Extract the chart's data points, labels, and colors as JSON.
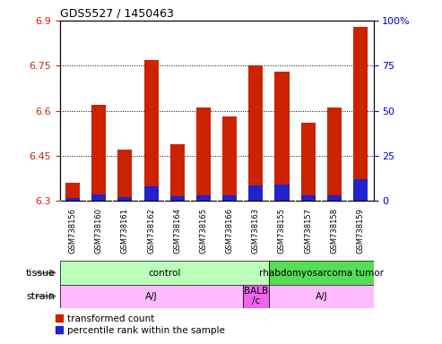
{
  "title": "GDS5527 / 1450463",
  "samples": [
    "GSM738156",
    "GSM738160",
    "GSM738161",
    "GSM738162",
    "GSM738164",
    "GSM738165",
    "GSM738166",
    "GSM738163",
    "GSM738155",
    "GSM738157",
    "GSM738158",
    "GSM738159"
  ],
  "red_values": [
    6.36,
    6.62,
    6.47,
    6.77,
    6.49,
    6.61,
    6.58,
    6.75,
    6.73,
    6.56,
    6.61,
    6.88
  ],
  "blue_values": [
    1.5,
    3.5,
    2.0,
    8.0,
    2.5,
    3.0,
    3.0,
    8.5,
    9.0,
    3.0,
    3.0,
    12.0
  ],
  "ymin": 6.3,
  "ymax": 6.9,
  "y_ticks": [
    6.3,
    6.45,
    6.6,
    6.75,
    6.9
  ],
  "y2_ticks": [
    0,
    25,
    50,
    75,
    100
  ],
  "tissue_labels": [
    {
      "text": "control",
      "start": 0,
      "end": 8,
      "color": "#bbffbb"
    },
    {
      "text": "rhabdomyosarcoma tumor",
      "start": 8,
      "end": 12,
      "color": "#55dd55"
    }
  ],
  "strain_labels": [
    {
      "text": "A/J",
      "start": 0,
      "end": 7,
      "color": "#ffbbff"
    },
    {
      "text": "BALB\n/c",
      "start": 7,
      "end": 8,
      "color": "#ee66ee"
    },
    {
      "text": "A/J",
      "start": 8,
      "end": 12,
      "color": "#ffbbff"
    }
  ],
  "bar_color_red": "#cc2200",
  "bar_color_blue": "#2222cc",
  "bar_width": 0.55,
  "ylabel_color": "#cc2200",
  "y2label_color": "#0000cc",
  "legend_red": "transformed count",
  "legend_blue": "percentile rank within the sample",
  "sample_bg_color": "#cccccc",
  "plot_bg": "#ffffff"
}
